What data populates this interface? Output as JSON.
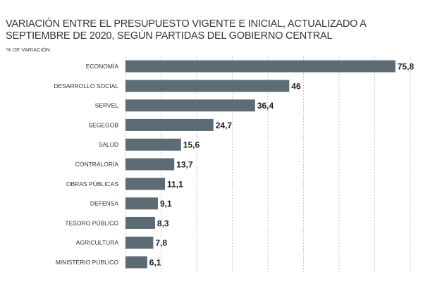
{
  "chart_data": {
    "type": "bar",
    "orientation": "horizontal",
    "title": "VARIACIÓN ENTRE EL PRESUPUESTO VIGENTE E INICIAL, ACTUALIZADO A SEPTIEMBRE DE 2020, SEGÚN PARTIDAS DEL GOBIERNO CENTRAL",
    "ylabel": "% DE VARIACIÓN",
    "xlim": [
      0,
      80
    ],
    "grid": true,
    "categories": [
      "ECONOMÍA",
      "DESARROLLO SOCIAL",
      "SERVEL",
      "SEGEGOB",
      "SALUD",
      "CONTRALORÍA",
      "OBRAS PÚBLICAS",
      "DEFENSA",
      "TESORO PÚBLICO",
      "AGRICULTURA",
      "MINISTERIO PÚBLICO"
    ],
    "values": [
      75.8,
      46,
      36.4,
      24.7,
      15.6,
      13.7,
      11.1,
      9.1,
      8.3,
      7.8,
      6.1
    ],
    "value_labels": [
      "75,8",
      "46",
      "36,4",
      "24,7",
      "15,6",
      "13,7",
      "11,1",
      "9,1",
      "8,3",
      "7,8",
      "6,1"
    ],
    "bar_color": "#5d6b74"
  }
}
